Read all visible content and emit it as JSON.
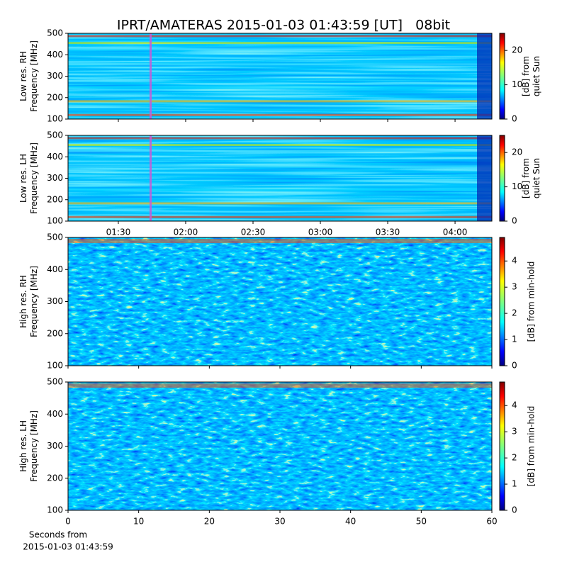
{
  "title": "IPRT/AMATERAS 2015-01-03 01:43:59 [UT]   08bit",
  "xlabel": [
    "Seconds from",
    "2015-01-03 01:43:59"
  ],
  "chart_data": [
    {
      "type": "spectrogram",
      "ylabel": [
        "Low res. RH",
        "Frequency [MHz]"
      ],
      "ylim": [
        100,
        500
      ],
      "yticks": [
        100,
        200,
        300,
        400,
        500
      ],
      "xlim": [
        67.6,
        256.4
      ],
      "colorbar_label": [
        "[dB] from",
        "quiet Sun"
      ],
      "clim": [
        0,
        25
      ],
      "cticks": [
        0,
        10,
        20
      ]
    },
    {
      "type": "spectrogram",
      "ylabel": [
        "Low res. LH",
        "Frequency [MHz]"
      ],
      "ylim": [
        100,
        500
      ],
      "yticks": [
        100,
        200,
        300,
        400,
        500
      ],
      "xlim": [
        67.6,
        256.4
      ],
      "xticks": [
        {
          "value": 90,
          "label": "01:30"
        },
        {
          "value": 120,
          "label": "02:00"
        },
        {
          "value": 150,
          "label": "02:30"
        },
        {
          "value": 180,
          "label": "03:00"
        },
        {
          "value": 210,
          "label": "03:30"
        },
        {
          "value": 240,
          "label": "04:00"
        }
      ],
      "colorbar_label": [
        "[dB] from",
        "quiet Sun"
      ],
      "clim": [
        0,
        25
      ],
      "cticks": [
        0,
        10,
        20
      ]
    },
    {
      "type": "spectrogram",
      "ylabel": [
        "High res. RH",
        "Frequency [MHz]"
      ],
      "ylim": [
        100,
        500
      ],
      "yticks": [
        100,
        200,
        300,
        400,
        500
      ],
      "xlim": [
        0,
        60
      ],
      "colorbar_label": [
        "[dB] from min-hold"
      ],
      "clim": [
        0,
        4.9
      ],
      "cticks": [
        0,
        1,
        2,
        3,
        4
      ]
    },
    {
      "type": "spectrogram",
      "ylabel": [
        "High res. LH",
        "Frequency [MHz]"
      ],
      "ylim": [
        100,
        500
      ],
      "yticks": [
        100,
        200,
        300,
        400,
        500
      ],
      "xlim": [
        0,
        60
      ],
      "xticks": [
        0,
        10,
        20,
        30,
        40,
        50,
        60
      ],
      "colorbar_label": [
        "[dB] from min-hold"
      ],
      "clim": [
        0,
        4.9
      ],
      "cticks": [
        0,
        1,
        2,
        3,
        4
      ]
    }
  ]
}
